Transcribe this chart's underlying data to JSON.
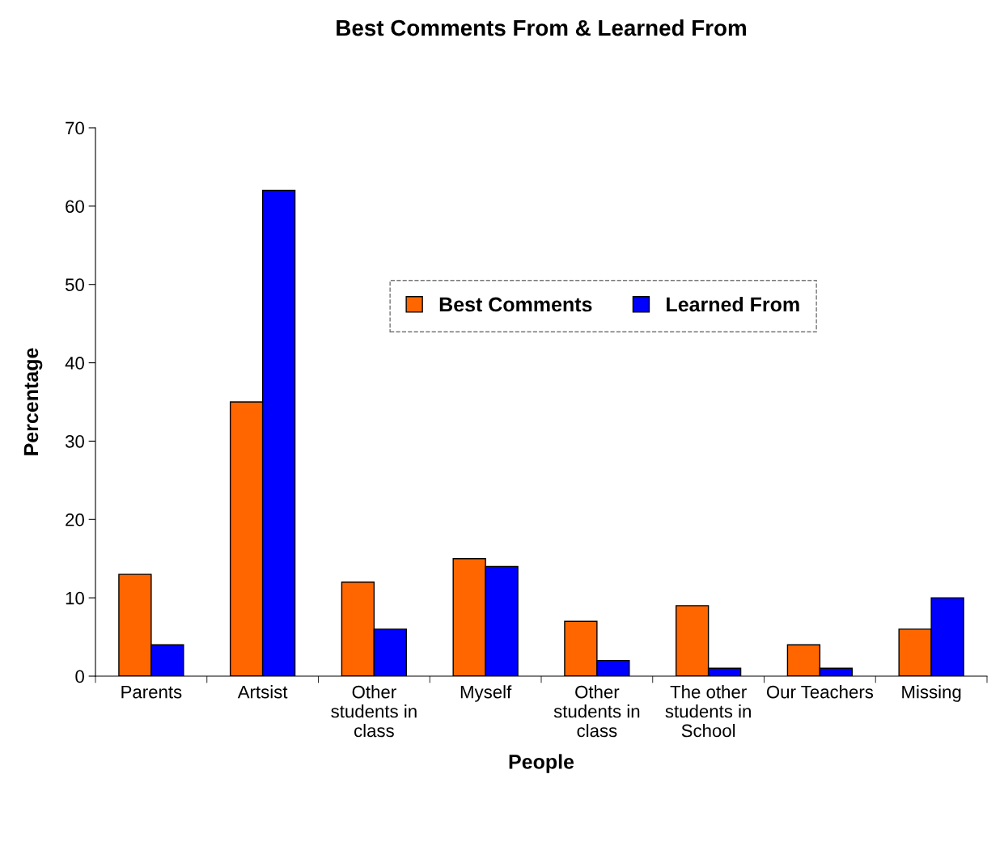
{
  "chart_data": {
    "type": "bar",
    "title": "Best Comments From & Learned From",
    "xlabel": "People",
    "ylabel": "Percentage",
    "categories": [
      "Parents",
      "Artsist",
      "Other students in class",
      "Myself",
      "Other students in class",
      "The other students in School",
      "Our Teachers",
      "Missing"
    ],
    "series": [
      {
        "name": "Best Comments",
        "color": "#ff6600",
        "values": [
          13,
          35,
          12,
          15,
          7,
          9,
          4,
          6
        ]
      },
      {
        "name": "Learned From",
        "color": "#0000ff",
        "values": [
          4,
          62,
          6,
          14,
          2,
          1,
          1,
          10
        ]
      }
    ],
    "ylim": [
      0,
      70
    ],
    "yticks": [
      0,
      10,
      20,
      30,
      40,
      50,
      60,
      70
    ],
    "grid": false,
    "legend": "top right"
  }
}
